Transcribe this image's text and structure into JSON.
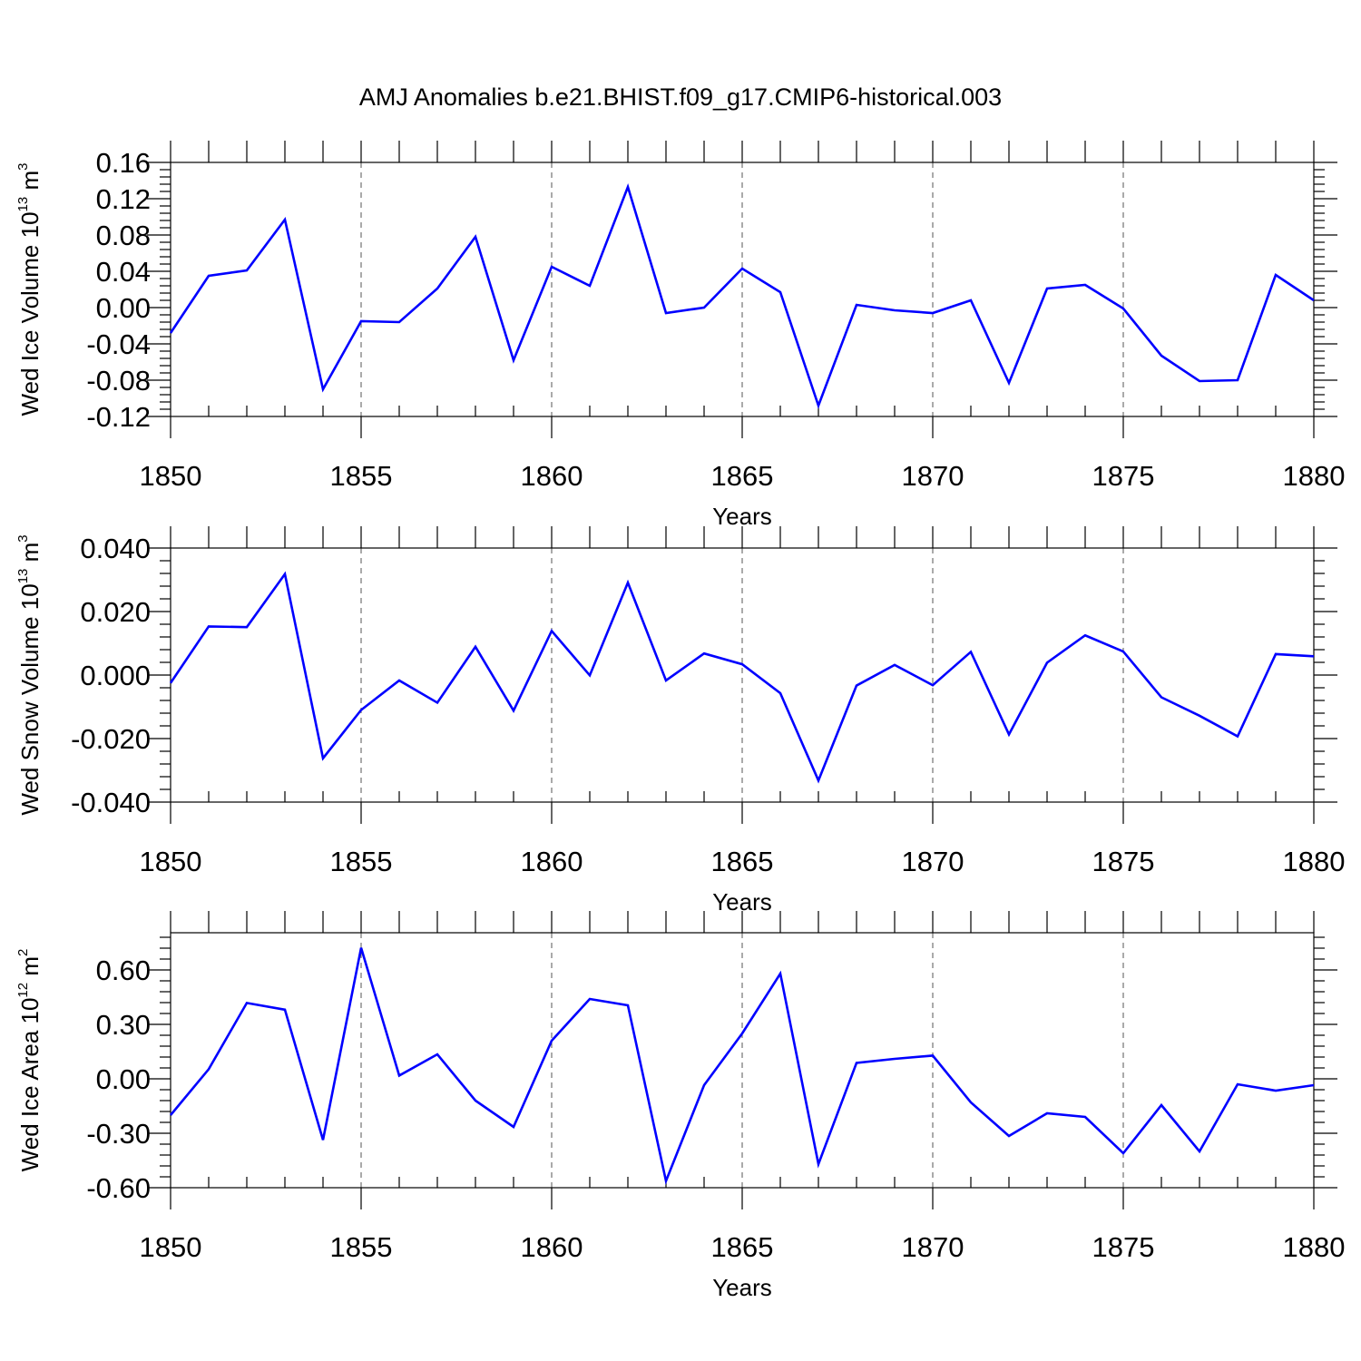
{
  "title": "AMJ Anomalies b.e21.BHIST.f09_g17.CMIP6-historical.003",
  "colors": {
    "line": "#0000ff",
    "axes": "#000000",
    "grid": "#555555",
    "background": "#ffffff"
  },
  "chart_data": [
    {
      "type": "line",
      "title": "",
      "xlabel": "Years",
      "ylabel": "Wed Ice Volume 10^13 m^3",
      "ylabel_main": "Wed Ice Volume 10",
      "ylabel_exp": "13",
      "ylabel_unit": " m",
      "ylabel_unit_exp": "3",
      "xlim": [
        1850,
        1880
      ],
      "ylim": [
        -0.12,
        0.16
      ],
      "xticks": [
        1850,
        1855,
        1860,
        1865,
        1870,
        1875,
        1880
      ],
      "yticks": [
        -0.12,
        -0.08,
        -0.04,
        0.0,
        0.04,
        0.08,
        0.12,
        0.16
      ],
      "ytick_labels": [
        "-0.12",
        "-0.08",
        "-0.04",
        "0.00",
        "0.04",
        "0.08",
        "0.12",
        "0.16"
      ],
      "grid": "vertical dashed at major x ticks",
      "series": [
        {
          "name": "Wed Ice Volume",
          "x": [
            1850,
            1851,
            1852,
            1853,
            1854,
            1855,
            1856,
            1857,
            1858,
            1859,
            1860,
            1861,
            1862,
            1863,
            1864,
            1865,
            1866,
            1867,
            1868,
            1869,
            1870,
            1871,
            1872,
            1873,
            1874,
            1875,
            1876,
            1877,
            1878,
            1879,
            1880
          ],
          "values": [
            -0.028,
            0.035,
            0.041,
            0.097,
            -0.09,
            -0.015,
            -0.016,
            0.021,
            0.078,
            -0.058,
            0.045,
            0.024,
            0.133,
            -0.006,
            0.0,
            0.043,
            0.017,
            -0.108,
            0.003,
            -0.003,
            -0.006,
            0.008,
            -0.083,
            0.021,
            0.025,
            -0.001,
            -0.053,
            -0.081,
            -0.08,
            0.036,
            0.008
          ]
        }
      ]
    },
    {
      "type": "line",
      "title": "",
      "xlabel": "Years",
      "ylabel": "Wed Snow Volume 10^13 m^3",
      "ylabel_main": "Wed Snow Volume 10",
      "ylabel_exp": "13",
      "ylabel_unit": " m",
      "ylabel_unit_exp": "3",
      "xlim": [
        1850,
        1880
      ],
      "ylim": [
        -0.04,
        0.04
      ],
      "xticks": [
        1850,
        1855,
        1860,
        1865,
        1870,
        1875,
        1880
      ],
      "yticks": [
        -0.04,
        -0.02,
        0.0,
        0.02,
        0.04
      ],
      "ytick_labels": [
        "-0.040",
        "-0.020",
        "0.000",
        "0.020",
        "0.040"
      ],
      "grid": "vertical dashed at major x ticks",
      "series": [
        {
          "name": "Wed Snow Volume",
          "x": [
            1850,
            1851,
            1852,
            1853,
            1854,
            1855,
            1856,
            1857,
            1858,
            1859,
            1860,
            1861,
            1862,
            1863,
            1864,
            1865,
            1866,
            1867,
            1868,
            1869,
            1870,
            1871,
            1872,
            1873,
            1874,
            1875,
            1876,
            1877,
            1878,
            1879,
            1880
          ],
          "values": [
            -0.0025,
            0.0153,
            0.0151,
            0.0318,
            -0.0262,
            -0.011,
            -0.0017,
            -0.0087,
            0.0089,
            -0.0112,
            0.0139,
            -0.0001,
            0.0291,
            -0.0017,
            0.0068,
            0.0034,
            -0.0057,
            -0.0332,
            -0.0033,
            0.0032,
            -0.0032,
            0.0073,
            -0.0187,
            0.0039,
            0.0125,
            0.0074,
            -0.007,
            -0.0128,
            -0.0193,
            0.0066,
            0.0059
          ]
        }
      ]
    },
    {
      "type": "line",
      "title": "",
      "xlabel": "Years",
      "ylabel": "Wed Ice Area 10^12 m^2",
      "ylabel_main": "Wed Ice Area 10",
      "ylabel_exp": "12",
      "ylabel_unit": " m",
      "ylabel_unit_exp": "2",
      "xlim": [
        1850,
        1880
      ],
      "ylim": [
        -0.6,
        0.805
      ],
      "xticks": [
        1850,
        1855,
        1860,
        1865,
        1870,
        1875,
        1880
      ],
      "yticks": [
        -0.6,
        -0.3,
        0.0,
        0.3,
        0.6
      ],
      "ytick_labels": [
        "-0.60",
        "-0.30",
        "0.00",
        "0.30",
        "0.60"
      ],
      "grid": "vertical dashed at major x ticks",
      "series": [
        {
          "name": "Wed Ice Area",
          "x": [
            1850,
            1851,
            1852,
            1853,
            1854,
            1855,
            1856,
            1857,
            1858,
            1859,
            1860,
            1861,
            1862,
            1863,
            1864,
            1865,
            1866,
            1867,
            1868,
            1869,
            1870,
            1871,
            1872,
            1873,
            1874,
            1875,
            1876,
            1877,
            1878,
            1879,
            1880
          ],
          "values": [
            -0.2,
            0.053,
            0.418,
            0.381,
            -0.337,
            0.722,
            0.018,
            0.135,
            -0.12,
            -0.265,
            0.21,
            0.44,
            0.405,
            -0.563,
            -0.035,
            0.25,
            0.58,
            -0.47,
            0.088,
            0.11,
            0.128,
            -0.13,
            -0.315,
            -0.19,
            -0.21,
            -0.41,
            -0.145,
            -0.4,
            -0.03,
            -0.065,
            -0.035
          ]
        }
      ]
    }
  ]
}
